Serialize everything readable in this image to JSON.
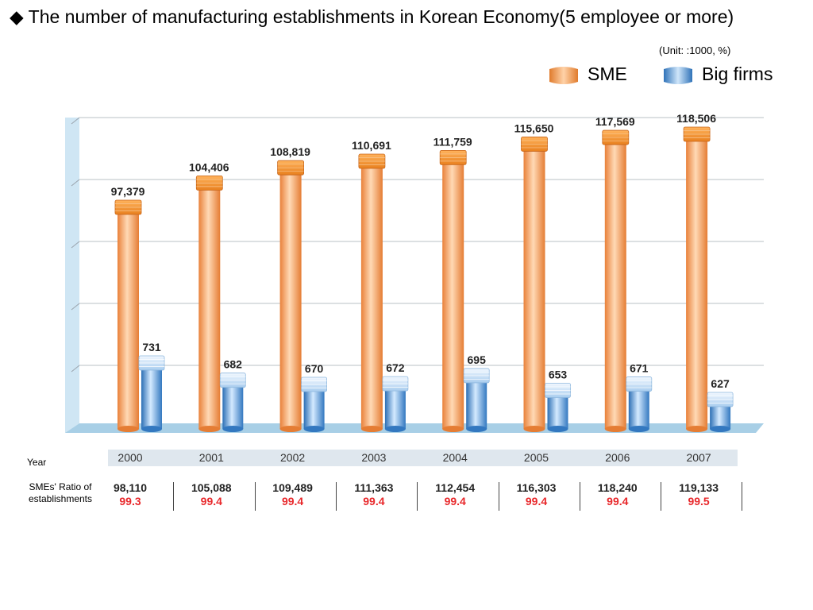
{
  "title": "◆ The number of manufacturing establishments in Korean Economy(5  employee or more)",
  "unit": "(Unit: :1000, %)",
  "legend": {
    "sme": "SME",
    "big": "Big firms"
  },
  "colors": {
    "sme": "#f5a362",
    "big": "#4a90d0",
    "ratio": "#e8282b"
  },
  "row_labels": {
    "year": "Year",
    "ratio": "SMEs' Ratio of establishments"
  },
  "chart_data": {
    "type": "bar",
    "categories": [
      "2000",
      "2001",
      "2002",
      "2003",
      "2004",
      "2005",
      "2006",
      "2007"
    ],
    "series": [
      {
        "name": "SME",
        "values": [
          97379,
          104406,
          108819,
          110691,
          111759,
          115650,
          117569,
          118506
        ],
        "labels": [
          "97,379",
          "104,406",
          "108,819",
          "110,691",
          "111,759",
          "115,650",
          "117,569",
          "118,506"
        ]
      },
      {
        "name": "Big firms",
        "values": [
          731,
          682,
          670,
          672,
          695,
          653,
          671,
          627
        ],
        "labels": [
          "731",
          "682",
          "670",
          "672",
          "695",
          "653",
          "671",
          "627"
        ]
      }
    ],
    "totals": [
      "98,110",
      "105,088",
      "109,489",
      "111,363",
      "112,454",
      "116,303",
      "118,240",
      "119,133"
    ],
    "ratios": [
      "99.3",
      "99.4",
      "99.4",
      "99.4",
      "99.4",
      "99.4",
      "99.4",
      "99.5"
    ],
    "legend_position": "top-right",
    "grid": true
  }
}
